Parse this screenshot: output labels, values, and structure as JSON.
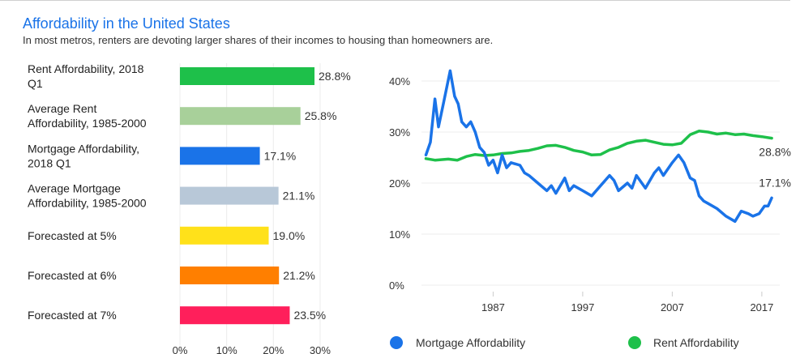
{
  "header": {
    "title": "Affordability in the United States",
    "subtitle": "In most metros, renters are devoting larger shares of their incomes to housing than homeowners are."
  },
  "chart_data": [
    {
      "type": "bar",
      "orientation": "horizontal",
      "categories": [
        [
          "Rent Affordability, 2018",
          "Q1"
        ],
        [
          "Average Rent",
          "Affordability, 1985-2000"
        ],
        [
          "Mortgage Affordability,",
          "2018 Q1"
        ],
        [
          "Average Mortgage",
          "Affordability, 1985-2000"
        ],
        [
          "Forecasted at 5%"
        ],
        [
          "Forecasted at 6%"
        ],
        [
          "Forecasted at 7%"
        ]
      ],
      "values": [
        28.8,
        25.8,
        17.1,
        21.1,
        19.0,
        21.2,
        23.5
      ],
      "value_labels": [
        "28.8%",
        "25.8%",
        "17.1%",
        "21.1%",
        "19.0%",
        "21.2%",
        "23.5%"
      ],
      "colors": [
        "#1ec04a",
        "#a8d09a",
        "#1a73e8",
        "#b8c8d8",
        "#ffe11a",
        "#ff7f00",
        "#ff1f5b"
      ],
      "xlim": [
        0,
        30
      ],
      "xticks": [
        "0%",
        "10%",
        "20%",
        "30%"
      ],
      "grid": true
    },
    {
      "type": "line",
      "ylim": [
        0,
        40
      ],
      "yticks": [
        "0%",
        "10%",
        "20%",
        "30%",
        "40%"
      ],
      "xticks": [
        "1987",
        "1997",
        "2007",
        "2017"
      ],
      "xtick_years": [
        1987,
        1997,
        2007,
        2017
      ],
      "xlim": [
        1979,
        2019
      ],
      "grid": true,
      "legend_position": "bottom",
      "series": [
        {
          "name": "Mortgage Affordability",
          "color": "#1a73e8",
          "end_label": "17.1%",
          "points": [
            [
              1979.5,
              25.5
            ],
            [
              1980.0,
              28.0
            ],
            [
              1980.5,
              36.5
            ],
            [
              1980.9,
              31.0
            ],
            [
              1981.5,
              36.0
            ],
            [
              1982.2,
              42.0
            ],
            [
              1982.7,
              37.0
            ],
            [
              1983.1,
              35.5
            ],
            [
              1983.5,
              32.0
            ],
            [
              1984.0,
              31.0
            ],
            [
              1984.5,
              32.0
            ],
            [
              1985.0,
              30.0
            ],
            [
              1985.5,
              27.0
            ],
            [
              1986.0,
              26.0
            ],
            [
              1986.5,
              23.5
            ],
            [
              1987.0,
              24.5
            ],
            [
              1987.5,
              22.0
            ],
            [
              1988.0,
              25.5
            ],
            [
              1988.5,
              23.0
            ],
            [
              1989.0,
              24.0
            ],
            [
              1990.0,
              23.5
            ],
            [
              1990.5,
              22.0
            ],
            [
              1991.0,
              21.5
            ],
            [
              1992.0,
              20.0
            ],
            [
              1993.0,
              18.5
            ],
            [
              1993.5,
              19.5
            ],
            [
              1994.0,
              18.0
            ],
            [
              1995.0,
              21.0
            ],
            [
              1995.5,
              18.5
            ],
            [
              1996.0,
              19.5
            ],
            [
              1997.0,
              18.5
            ],
            [
              1998.0,
              17.5
            ],
            [
              1999.0,
              19.5
            ],
            [
              2000.0,
              21.5
            ],
            [
              2000.5,
              20.5
            ],
            [
              2001.0,
              18.5
            ],
            [
              2002.0,
              20.0
            ],
            [
              2002.5,
              19.0
            ],
            [
              2003.0,
              21.5
            ],
            [
              2004.0,
              19.0
            ],
            [
              2005.0,
              22.0
            ],
            [
              2005.5,
              23.0
            ],
            [
              2006.0,
              21.5
            ],
            [
              2007.0,
              24.0
            ],
            [
              2007.7,
              25.5
            ],
            [
              2008.3,
              24.0
            ],
            [
              2009.0,
              21.0
            ],
            [
              2009.5,
              20.5
            ],
            [
              2010.0,
              17.5
            ],
            [
              2010.5,
              16.5
            ],
            [
              2011.0,
              16.0
            ],
            [
              2012.0,
              15.0
            ],
            [
              2013.0,
              13.5
            ],
            [
              2014.0,
              12.5
            ],
            [
              2014.7,
              14.5
            ],
            [
              2015.5,
              14.0
            ],
            [
              2016.0,
              13.5
            ],
            [
              2016.7,
              14.0
            ],
            [
              2017.3,
              15.5
            ],
            [
              2017.7,
              15.5
            ],
            [
              2018.1,
              17.1
            ]
          ]
        },
        {
          "name": "Rent Affordability",
          "color": "#1ec04a",
          "end_label": "28.8%",
          "points": [
            [
              1979.5,
              24.8
            ],
            [
              1980.5,
              24.5
            ],
            [
              1982.0,
              24.7
            ],
            [
              1983.0,
              24.5
            ],
            [
              1984.0,
              25.2
            ],
            [
              1985.0,
              25.6
            ],
            [
              1986.0,
              25.4
            ],
            [
              1987.0,
              25.5
            ],
            [
              1988.0,
              25.8
            ],
            [
              1989.0,
              25.9
            ],
            [
              1990.0,
              26.2
            ],
            [
              1991.0,
              26.4
            ],
            [
              1992.0,
              26.8
            ],
            [
              1993.0,
              27.3
            ],
            [
              1994.0,
              27.4
            ],
            [
              1995.0,
              27.0
            ],
            [
              1996.0,
              26.4
            ],
            [
              1997.0,
              26.1
            ],
            [
              1998.0,
              25.5
            ],
            [
              1999.0,
              25.6
            ],
            [
              2000.0,
              26.5
            ],
            [
              2001.0,
              27.0
            ],
            [
              2002.0,
              27.8
            ],
            [
              2003.0,
              28.2
            ],
            [
              2004.0,
              28.4
            ],
            [
              2005.0,
              28.0
            ],
            [
              2006.0,
              27.6
            ],
            [
              2007.0,
              27.5
            ],
            [
              2008.0,
              27.8
            ],
            [
              2009.0,
              29.5
            ],
            [
              2010.0,
              30.2
            ],
            [
              2011.0,
              30.0
            ],
            [
              2012.0,
              29.6
            ],
            [
              2013.0,
              29.8
            ],
            [
              2014.0,
              29.5
            ],
            [
              2015.0,
              29.6
            ],
            [
              2016.0,
              29.3
            ],
            [
              2017.0,
              29.1
            ],
            [
              2018.1,
              28.8
            ]
          ]
        }
      ]
    }
  ]
}
